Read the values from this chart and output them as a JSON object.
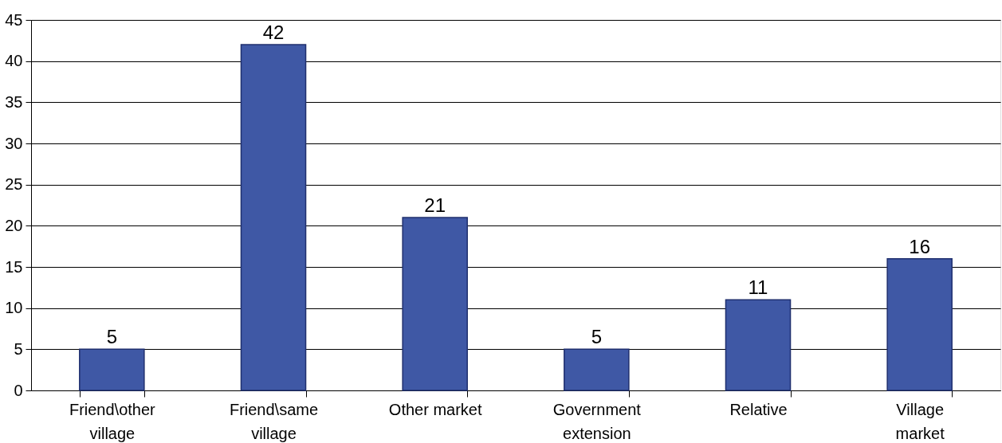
{
  "chart_data": {
    "type": "bar",
    "categories": [
      "Friend\\other village",
      "Friend\\same village",
      "Other market",
      "Government extension",
      "Relative",
      "Village market"
    ],
    "values": [
      5,
      42,
      21,
      5,
      11,
      16
    ],
    "color": "#3f58a5",
    "ylim": [
      0,
      45
    ],
    "yticks": [
      0,
      5,
      10,
      15,
      20,
      25,
      30,
      35,
      40,
      45
    ],
    "grid": "y",
    "data_labels": true
  }
}
